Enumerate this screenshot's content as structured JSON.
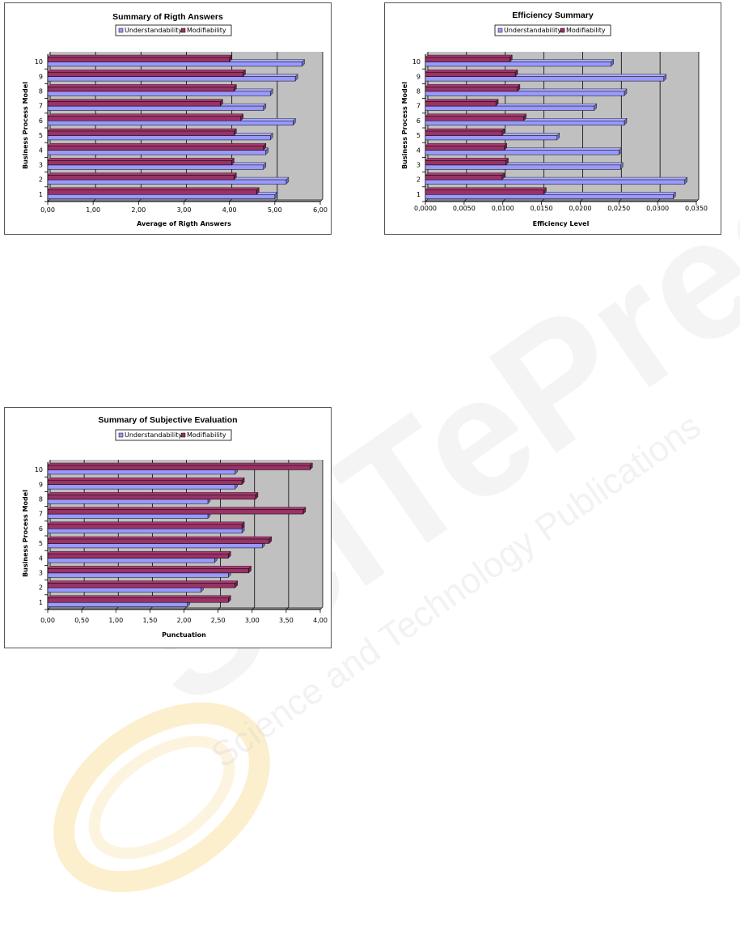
{
  "colors": {
    "understandability": "#9999ff",
    "modifiability": "#993366",
    "plot_background": "#c0c0c0",
    "watermark_gray": "#dcdcdc",
    "watermark_gold": "#f6d98a"
  },
  "watermark": {
    "brand": "SciTePress",
    "tagline": "Science and Technology Publications"
  },
  "chart_data": [
    {
      "type": "bar",
      "orientation": "horizontal",
      "title": "Summary of Rigth Answers",
      "xlabel": "Average of Rigth Answers",
      "ylabel": "Business Process Model",
      "legend_position": "top",
      "grid": true,
      "xlim": [
        0,
        6
      ],
      "x_ticks": [
        "0,00",
        "1,00",
        "2,00",
        "3,00",
        "4,00",
        "5,00",
        "6,00"
      ],
      "categories": [
        "1",
        "2",
        "3",
        "4",
        "5",
        "6",
        "7",
        "8",
        "9",
        "10"
      ],
      "series": [
        {
          "name": "Understandability",
          "values": [
            5.0,
            5.25,
            4.75,
            4.8,
            4.9,
            5.4,
            4.75,
            4.9,
            5.45,
            5.6
          ]
        },
        {
          "name": "Modifiability",
          "values": [
            4.6,
            4.1,
            4.05,
            4.75,
            4.1,
            4.25,
            3.8,
            4.1,
            4.3,
            4.0
          ]
        }
      ]
    },
    {
      "type": "bar",
      "orientation": "horizontal",
      "title": "Efficiency Summary",
      "xlabel": "Efficiency Level",
      "ylabel": "Business Process Model",
      "legend_position": "top",
      "grid": true,
      "xlim": [
        0,
        0.035
      ],
      "x_ticks": [
        "0,0000",
        "0,0050",
        "0,0100",
        "0,0150",
        "0,0200",
        "0,0250",
        "0,0300",
        "0,0350"
      ],
      "categories": [
        "1",
        "2",
        "3",
        "4",
        "5",
        "6",
        "7",
        "8",
        "9",
        "10"
      ],
      "series": [
        {
          "name": "Understandability",
          "values": [
            0.032,
            0.0335,
            0.0252,
            0.025,
            0.017,
            0.0257,
            0.0218,
            0.0257,
            0.0308,
            0.024
          ]
        },
        {
          "name": "Modifiability",
          "values": [
            0.0153,
            0.0099,
            0.0104,
            0.0102,
            0.0099,
            0.0127,
            0.0091,
            0.0119,
            0.0116,
            0.0109
          ]
        }
      ]
    },
    {
      "type": "bar",
      "orientation": "horizontal",
      "title": "Summary of Subjective Evaluation",
      "xlabel": "Punctuation",
      "ylabel": "Business Process Model",
      "legend_position": "top",
      "grid": true,
      "xlim": [
        0,
        4
      ],
      "x_ticks": [
        "0,00",
        "0,50",
        "1,00",
        "1,50",
        "2,00",
        "2,50",
        "3,00",
        "3,50",
        "4,00"
      ],
      "categories": [
        "1",
        "2",
        "3",
        "4",
        "5",
        "6",
        "7",
        "8",
        "9",
        "10"
      ],
      "series": [
        {
          "name": "Understandability",
          "values": [
            2.05,
            2.25,
            2.65,
            2.45,
            3.15,
            2.85,
            2.35,
            2.35,
            2.75,
            2.75
          ]
        },
        {
          "name": "Modifiability",
          "values": [
            2.65,
            2.75,
            2.95,
            2.65,
            3.25,
            2.85,
            3.75,
            3.05,
            2.85,
            3.85
          ]
        }
      ]
    }
  ]
}
